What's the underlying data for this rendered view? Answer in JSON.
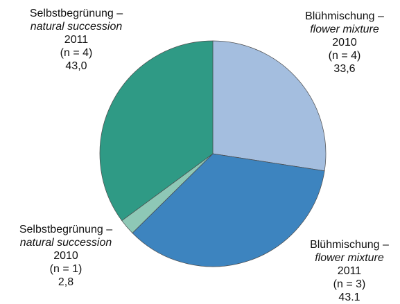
{
  "chart_data": {
    "type": "pie",
    "labels": [
      {
        "name": "Blühmischung –",
        "name_en": "flower mixture",
        "year": "2010",
        "n": "(n = 4)"
      },
      {
        "name": "Blühmischung –",
        "name_en": "flower mixture",
        "year": "2011",
        "n": "(n = 3)"
      },
      {
        "name": "Selbstbegrünung –",
        "name_en": "natural succession",
        "year": "2010",
        "n": "(n = 1)"
      },
      {
        "name": "Selbstbegrünung –",
        "name_en": "natural succession",
        "year": "2011",
        "n": "(n = 4)"
      }
    ],
    "values": [
      33.6,
      43.1,
      2.8,
      43.0
    ],
    "value_labels": [
      "33,6",
      "43.1",
      "2,8",
      "43,0"
    ],
    "colors": [
      "#a4bedf",
      "#3d84bf",
      "#8ec8b6",
      "#2f9a85"
    ]
  }
}
